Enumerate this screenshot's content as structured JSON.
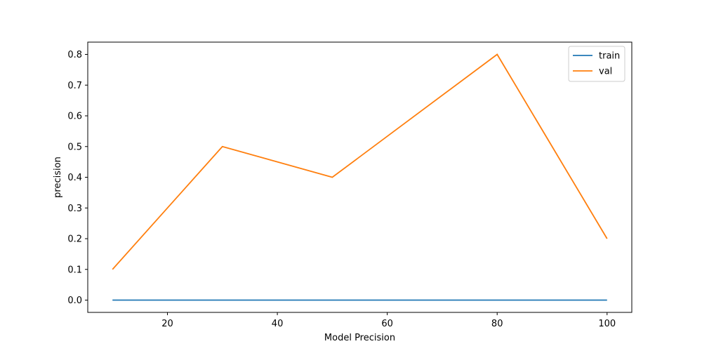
{
  "chart_data": {
    "type": "line",
    "title": "",
    "xlabel": "Model Precision",
    "ylabel": "precision",
    "xlim": [
      5.5,
      104.5
    ],
    "ylim": [
      -0.04,
      0.84
    ],
    "x_ticks": [
      20,
      40,
      60,
      80,
      100
    ],
    "y_ticks": [
      0.0,
      0.1,
      0.2,
      0.3,
      0.4,
      0.5,
      0.6,
      0.7,
      0.8
    ],
    "grid": false,
    "legend_position": "top-right",
    "x": [
      10,
      30,
      50,
      80,
      100
    ],
    "series": [
      {
        "name": "train",
        "color": "#1f77b4",
        "values": [
          0.0,
          0.0,
          0.0,
          0.0,
          0.0
        ]
      },
      {
        "name": "val",
        "color": "#ff7f0e",
        "values": [
          0.1,
          0.5,
          0.4,
          0.8,
          0.2
        ]
      }
    ]
  }
}
